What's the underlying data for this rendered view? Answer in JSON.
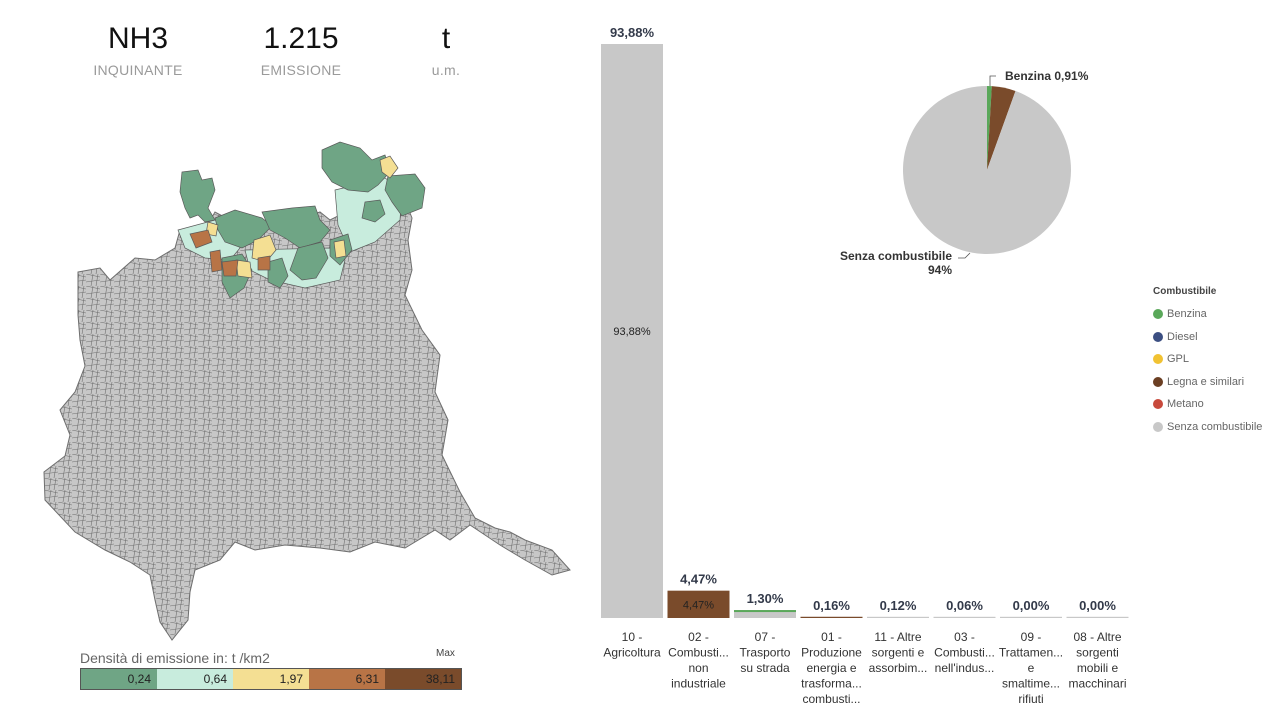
{
  "kpis": [
    {
      "value": "NH3",
      "label": "INQUINANTE"
    },
    {
      "value": "1.215",
      "label": "EMISSIONE"
    },
    {
      "value": "t",
      "label": "u.m."
    }
  ],
  "map_legend": {
    "title": "Densità di emissione in:  t /km2",
    "max_label": "Max",
    "bins": [
      {
        "label": "0,24",
        "color": "#6fa585"
      },
      {
        "label": "0,64",
        "color": "#c8ecdd"
      },
      {
        "label": "1,97",
        "color": "#f4df93"
      },
      {
        "label": "6,31",
        "color": "#b87446"
      },
      {
        "label": "38,11",
        "color": "#7a4b2b"
      }
    ]
  },
  "colors": {
    "map_base": "#c7c7c7",
    "map_stroke": "#6e6e6e"
  },
  "chart_data": [
    {
      "type": "bar",
      "categories": [
        [
          "10 -",
          "Agricoltura"
        ],
        [
          "02 -",
          "Combusti...",
          "non",
          "industriale"
        ],
        [
          "07 -",
          "Trasporto",
          "su strada"
        ],
        [
          "01 -",
          "Produzione",
          "energia e",
          "trasforma...",
          "combusti..."
        ],
        [
          "11 - Altre",
          "sorgenti e",
          "assorbim..."
        ],
        [
          "03 -",
          "Combusti...",
          "nell'indus..."
        ],
        [
          "09 -",
          "Trattamen...",
          "e",
          "smaltime...",
          "rifiuti"
        ],
        [
          "08 - Altre",
          "sorgenti",
          "mobili e",
          "macchinari"
        ]
      ],
      "values": [
        93.88,
        4.47,
        1.3,
        0.16,
        0.12,
        0.06,
        0.0,
        0.0
      ],
      "value_labels": [
        "93,88%",
        "4,47%",
        "1,30%",
        "0,16%",
        "0,12%",
        "0,06%",
        "0,00%",
        "0,00%"
      ],
      "inner_labels": [
        "93,88%",
        "4,47%",
        "",
        "",
        "",
        "",
        "",
        ""
      ],
      "bar_colors": [
        "#c8c8c8",
        "#7a4b2b",
        "#c8c8c8",
        "#c8c8c8",
        "#c8c8c8",
        "#c8c8c8",
        "#c8c8c8",
        "#c8c8c8"
      ],
      "top_stripe_colors": [
        "",
        "",
        "#5aa85a",
        "#7a4b2b",
        "",
        "",
        "",
        ""
      ],
      "ylim": [
        0,
        93.88
      ]
    },
    {
      "type": "pie",
      "slices": [
        {
          "name": "Benzina",
          "value": 0.91,
          "color": "#5aa85a"
        },
        {
          "name": "Legna e similari",
          "value": 4.6,
          "color": "#7a4b2b"
        },
        {
          "name": "Senza combustibile",
          "value": 94.49,
          "color": "#c8c8c8"
        }
      ],
      "annotations": [
        {
          "text": "Benzina 0,91%"
        },
        {
          "text": "Senza combustibile",
          "sub": "94%"
        }
      ],
      "legend": {
        "title": "Combustibile",
        "position": "right",
        "items": [
          {
            "name": "Benzina",
            "color": "#5aa85a"
          },
          {
            "name": "Diesel",
            "color": "#3c4f82"
          },
          {
            "name": "GPL",
            "color": "#f1c232"
          },
          {
            "name": "Legna e similari",
            "color": "#6b3f23"
          },
          {
            "name": "Metano",
            "color": "#c84a3c"
          },
          {
            "name": "Senza combustibile",
            "color": "#c8c8c8"
          }
        ]
      }
    }
  ]
}
